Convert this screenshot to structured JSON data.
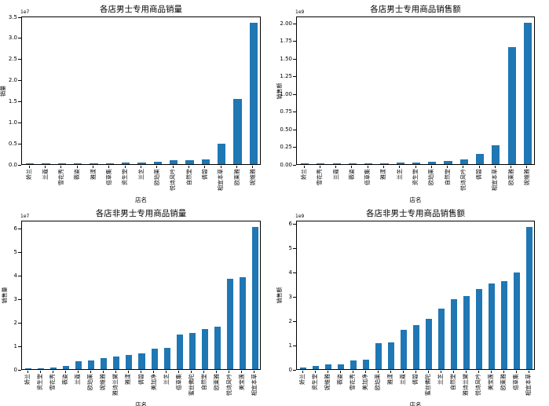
{
  "figure": {
    "bar_color": "#1f77b4",
    "spine_color": "#000000",
    "background": "#ffffff"
  },
  "chart_data": [
    {
      "type": "bar",
      "title": "各店男士专用商品销量",
      "xlabel": "店名",
      "ylabel": "销量",
      "offset_text": "1e7",
      "unit_scale": "1e7",
      "ylim": [
        0,
        3.52
      ],
      "grid": false,
      "legend": "none",
      "yticks": [
        "0.0",
        "0.5",
        "1.0",
        "1.5",
        "2.0",
        "2.5",
        "3.0",
        "3.5"
      ],
      "ytick_values": [
        0,
        0.5,
        1.0,
        1.5,
        2.0,
        2.5,
        3.0,
        3.5
      ],
      "categories": [
        "娇兰",
        "兰蔻",
        "雪花秀",
        "薇姿",
        "雅漾",
        "佰草集",
        "资生堂",
        "兰芝",
        "欧珀莱",
        "悦诗风吟",
        "自然堂",
        "倩碧",
        "相宜本草",
        "欧莱雅",
        "妮维雅"
      ],
      "values": [
        0.005,
        0.008,
        0.012,
        0.015,
        0.02,
        0.025,
        0.03,
        0.035,
        0.06,
        0.09,
        0.1,
        0.12,
        0.49,
        1.54,
        3.35
      ]
    },
    {
      "type": "bar",
      "title": "各店男士专用商品销售额",
      "xlabel": "店名",
      "ylabel": "销售额",
      "offset_text": "1e9",
      "unit_scale": "1e9",
      "ylim": [
        0,
        2.1
      ],
      "grid": false,
      "legend": "none",
      "yticks": [
        "0.00",
        "0.25",
        "0.50",
        "0.75",
        "1.00",
        "1.25",
        "1.50",
        "1.75",
        "2.00"
      ],
      "ytick_values": [
        0,
        0.25,
        0.5,
        0.75,
        1.0,
        1.25,
        1.5,
        1.75,
        2.0
      ],
      "categories": [
        "娇兰",
        "雪花秀",
        "兰蔻",
        "薇姿",
        "佰草集",
        "雅漾",
        "兰芝",
        "资生堂",
        "欧珀莱",
        "自然堂",
        "悦诗风吟",
        "倩碧",
        "相宜本草",
        "欧莱雅",
        "妮维雅"
      ],
      "values": [
        0.003,
        0.005,
        0.006,
        0.008,
        0.012,
        0.013,
        0.017,
        0.019,
        0.037,
        0.042,
        0.063,
        0.15,
        0.27,
        1.66,
        2.0
      ]
    },
    {
      "type": "bar",
      "title": "各店非男士专用商品销量",
      "xlabel": "店名",
      "ylabel": "销售量",
      "offset_text": "1e7",
      "unit_scale": "1e7",
      "ylim": [
        0,
        6.35
      ],
      "grid": false,
      "legend": "none",
      "yticks": [
        "0",
        "1",
        "2",
        "3",
        "4",
        "5",
        "6"
      ],
      "ytick_values": [
        0,
        1,
        2,
        3,
        4,
        5,
        6
      ],
      "categories": [
        "娇兰",
        "资生堂",
        "雪花秀",
        "薇姿",
        "兰蔻",
        "欧珀莱",
        "妮维雅",
        "雅诗兰黛",
        "雅漾",
        "倩碧",
        "美加净",
        "兰芝",
        "佰草集",
        "蜜丝佛陀",
        "自然堂",
        "欧莱雅",
        "悦诗风吟",
        "美宝莲",
        "相宜本草"
      ],
      "values": [
        0.01,
        0.03,
        0.08,
        0.12,
        0.32,
        0.38,
        0.48,
        0.55,
        0.6,
        0.66,
        0.88,
        0.91,
        1.48,
        1.54,
        1.72,
        1.81,
        3.84,
        3.92,
        6.05
      ]
    },
    {
      "type": "bar",
      "title": "各店非男士专用商品销售额",
      "xlabel": "店名",
      "ylabel": "销售额",
      "offset_text": "1e9",
      "unit_scale": "1e9",
      "ylim": [
        0,
        6.16
      ],
      "grid": false,
      "legend": "none",
      "yticks": [
        "0",
        "1",
        "2",
        "3",
        "4",
        "5",
        "6"
      ],
      "ytick_values": [
        0,
        1,
        2,
        3,
        4,
        5,
        6
      ],
      "categories": [
        "娇兰",
        "资生堂",
        "妮维雅",
        "薇姿",
        "雪花秀",
        "美加净",
        "欧珀莱",
        "雅漾",
        "兰蔻",
        "倩碧",
        "蜜丝佛陀",
        "兰芝",
        "自然堂",
        "雅诗兰黛",
        "悦诗风吟",
        "美宝莲",
        "欧莱雅",
        "佰草集",
        "相宜本草"
      ],
      "values": [
        0.07,
        0.14,
        0.2,
        0.21,
        0.36,
        0.38,
        1.07,
        1.1,
        1.63,
        1.82,
        2.07,
        2.5,
        2.9,
        3.03,
        3.3,
        3.52,
        3.63,
        4.0,
        5.87
      ]
    }
  ]
}
